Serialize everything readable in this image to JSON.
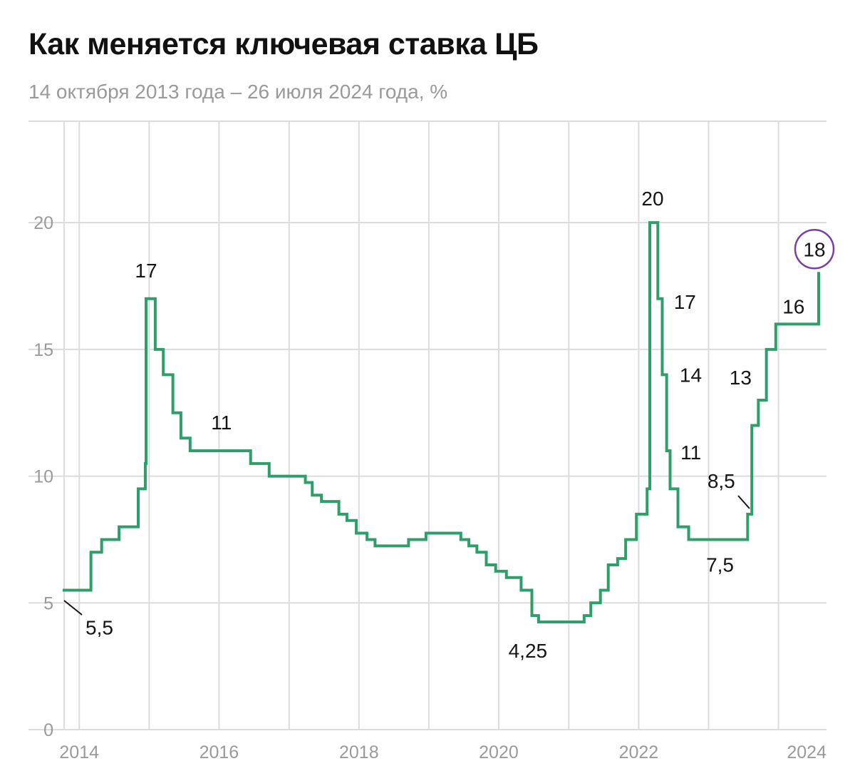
{
  "title": "Как меняется ключевая ставка ЦБ",
  "subtitle": "14 октября 2013 года – 26 июля 2024 года, %",
  "chart_data": {
    "type": "line",
    "step": true,
    "title": "Как меняется ключевая ставка ЦБ",
    "subtitle": "14 октября 2013 года – 26 июля 2024 года, %",
    "xlabel": "",
    "ylabel": "",
    "xlim": [
      "2013-10-14",
      "2024-07-29"
    ],
    "ylim": [
      0,
      24
    ],
    "yticks": [
      0,
      5,
      10,
      15,
      20
    ],
    "xticks": [
      "2014",
      "2016",
      "2018",
      "2020",
      "2022",
      "2024"
    ],
    "grid": true,
    "line_color": "#2e9e6b",
    "highlight_color": "#7b3fa0",
    "series": [
      {
        "name": "",
        "points": [
          [
            "2013-09-13",
            5.5
          ],
          [
            "2014-03-03",
            7.0
          ],
          [
            "2014-04-28",
            7.5
          ],
          [
            "2014-07-28",
            8.0
          ],
          [
            "2014-11-05",
            9.5
          ],
          [
            "2014-12-12",
            10.5
          ],
          [
            "2014-12-16",
            17.0
          ],
          [
            "2015-02-02",
            15.0
          ],
          [
            "2015-03-16",
            14.0
          ],
          [
            "2015-05-05",
            12.5
          ],
          [
            "2015-06-16",
            11.5
          ],
          [
            "2015-08-03",
            11.0
          ],
          [
            "2016-06-14",
            10.5
          ],
          [
            "2016-09-19",
            10.0
          ],
          [
            "2017-03-27",
            9.75
          ],
          [
            "2017-05-02",
            9.25
          ],
          [
            "2017-06-19",
            9.0
          ],
          [
            "2017-09-18",
            8.5
          ],
          [
            "2017-10-30",
            8.25
          ],
          [
            "2017-12-18",
            7.75
          ],
          [
            "2018-02-12",
            7.5
          ],
          [
            "2018-03-26",
            7.25
          ],
          [
            "2018-09-17",
            7.5
          ],
          [
            "2018-12-17",
            7.75
          ],
          [
            "2019-06-17",
            7.5
          ],
          [
            "2019-07-29",
            7.25
          ],
          [
            "2019-09-09",
            7.0
          ],
          [
            "2019-10-28",
            6.5
          ],
          [
            "2019-12-16",
            6.25
          ],
          [
            "2020-02-10",
            6.0
          ],
          [
            "2020-04-27",
            5.5
          ],
          [
            "2020-06-22",
            4.5
          ],
          [
            "2020-07-27",
            4.25
          ],
          [
            "2021-03-22",
            4.5
          ],
          [
            "2021-04-26",
            5.0
          ],
          [
            "2021-06-15",
            5.5
          ],
          [
            "2021-07-26",
            6.5
          ],
          [
            "2021-09-13",
            6.75
          ],
          [
            "2021-10-25",
            7.5
          ],
          [
            "2021-12-20",
            8.5
          ],
          [
            "2022-02-14",
            9.5
          ],
          [
            "2022-02-28",
            20.0
          ],
          [
            "2022-04-11",
            17.0
          ],
          [
            "2022-05-04",
            14.0
          ],
          [
            "2022-05-27",
            11.0
          ],
          [
            "2022-06-14",
            9.5
          ],
          [
            "2022-07-25",
            8.0
          ],
          [
            "2022-09-19",
            7.5
          ],
          [
            "2023-07-24",
            8.5
          ],
          [
            "2023-08-15",
            12.0
          ],
          [
            "2023-09-18",
            13.0
          ],
          [
            "2023-10-30",
            15.0
          ],
          [
            "2023-12-18",
            16.0
          ],
          [
            "2024-07-29",
            18.0
          ]
        ]
      }
    ],
    "annotations": [
      {
        "text": "5,5",
        "x": "2013-10-14",
        "y": 5.5
      },
      {
        "text": "17",
        "x": "2014-12-16",
        "y": 17
      },
      {
        "text": "11",
        "x": "2015-08-03",
        "y": 11
      },
      {
        "text": "4,25",
        "x": "2020-07-27",
        "y": 4.25
      },
      {
        "text": "20",
        "x": "2022-02-28",
        "y": 20
      },
      {
        "text": "17",
        "x": "2022-04-11",
        "y": 17
      },
      {
        "text": "14",
        "x": "2022-05-04",
        "y": 14
      },
      {
        "text": "11",
        "x": "2022-05-27",
        "y": 11
      },
      {
        "text": "7,5",
        "x": "2022-09-19",
        "y": 7.5
      },
      {
        "text": "8,5",
        "x": "2023-07-24",
        "y": 8.5
      },
      {
        "text": "13",
        "x": "2023-09-18",
        "y": 13
      },
      {
        "text": "16",
        "x": "2023-12-18",
        "y": 16
      },
      {
        "text": "18",
        "x": "2024-07-29",
        "y": 18,
        "highlight": true
      }
    ]
  }
}
